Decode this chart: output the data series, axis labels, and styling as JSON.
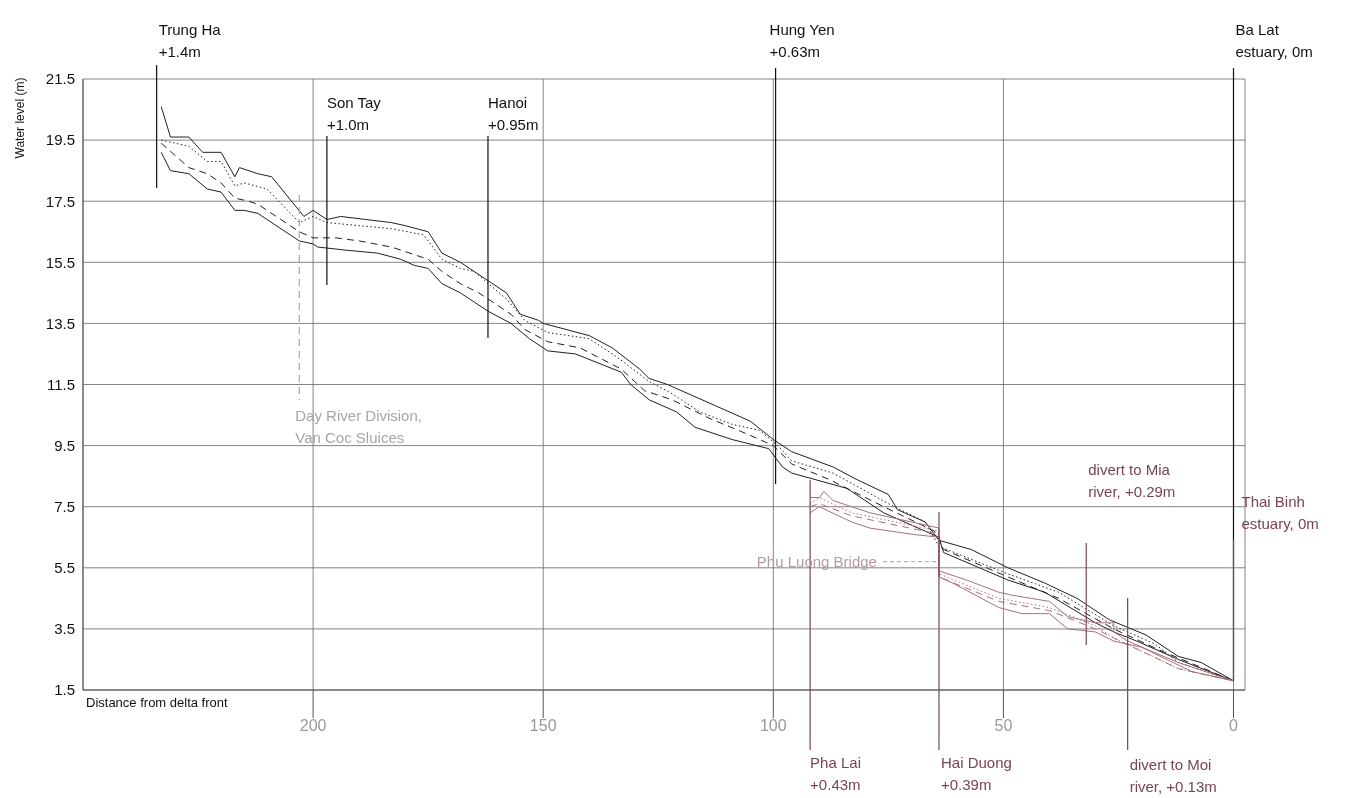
{
  "chart_data": {
    "type": "line",
    "xlabel": "Distance from delta front",
    "ylabel": "Water level (m)",
    "xlim": [
      250,
      -2.5
    ],
    "xticks": [
      200,
      150,
      100,
      50,
      0
    ],
    "ylim": [
      1.5,
      21.5
    ],
    "yticks": [
      1.5,
      3.5,
      5.5,
      7.5,
      9.5,
      11.5,
      13.5,
      15.5,
      17.5,
      19.5,
      21.5
    ],
    "grid": true,
    "series": [
      {
        "color": "#222222",
        "line_style": "solid",
        "x": [
          233,
          231,
          227,
          224,
          220,
          217,
          216,
          212,
          209,
          202,
          200,
          197,
          194,
          183,
          180,
          175,
          172,
          168,
          158,
          155,
          151,
          150,
          140,
          135,
          129,
          127,
          123,
          117,
          105,
          100,
          96,
          87,
          82,
          75,
          73,
          67,
          64,
          57,
          49,
          41,
          34,
          27,
          19,
          12,
          7,
          0
        ],
        "values": [
          20.6,
          19.6,
          19.6,
          19.1,
          19.1,
          18.3,
          18.6,
          18.4,
          18.3,
          17.0,
          17.2,
          16.9,
          17.0,
          16.8,
          16.7,
          16.5,
          15.8,
          15.5,
          14.5,
          13.8,
          13.6,
          13.5,
          13.1,
          12.7,
          12.0,
          11.7,
          11.5,
          11.1,
          10.3,
          9.7,
          9.3,
          8.8,
          8.4,
          7.9,
          7.4,
          7.0,
          6.4,
          6.1,
          5.5,
          5.0,
          4.5,
          3.8,
          3.3,
          2.6,
          2.4,
          1.8
        ]
      },
      {
        "color": "#222222",
        "line_style": "dotted",
        "x": [
          233,
          230,
          227,
          223,
          220,
          217,
          215,
          210,
          203,
          200,
          197,
          190,
          183,
          176,
          172,
          168,
          165,
          158,
          154,
          149,
          140,
          134,
          127,
          122,
          116,
          109,
          103,
          99,
          96,
          87,
          75,
          67,
          64,
          49,
          38,
          26,
          17,
          12,
          0
        ],
        "values": [
          19.5,
          19.4,
          19.3,
          18.8,
          18.8,
          18.0,
          18.1,
          17.9,
          16.8,
          17.0,
          16.8,
          16.7,
          16.6,
          16.4,
          15.6,
          15.3,
          15.2,
          14.3,
          13.6,
          13.2,
          13.0,
          12.4,
          11.6,
          11.2,
          10.6,
          10.2,
          10.0,
          9.5,
          9.0,
          8.6,
          7.6,
          7.0,
          6.2,
          5.3,
          4.7,
          3.6,
          3.0,
          2.4,
          1.8
        ]
      },
      {
        "color": "#222222",
        "line_style": "dashed",
        "x": [
          233,
          230,
          227,
          223,
          220,
          217,
          214,
          212,
          203,
          200,
          195,
          190,
          183,
          175,
          172,
          168,
          164,
          157,
          154,
          149,
          142,
          133,
          128,
          122,
          114,
          106,
          100,
          96,
          88,
          76,
          65,
          63,
          49,
          38,
          26,
          16,
          0
        ],
        "values": [
          19.4,
          19.0,
          18.6,
          18.4,
          18.1,
          17.6,
          17.5,
          17.4,
          16.5,
          16.3,
          16.3,
          16.2,
          16.0,
          15.6,
          15.2,
          14.8,
          14.5,
          13.8,
          13.3,
          12.9,
          12.7,
          12.0,
          11.3,
          11.0,
          10.4,
          9.9,
          9.5,
          8.9,
          8.4,
          7.5,
          6.7,
          6.1,
          5.2,
          4.5,
          3.5,
          2.8,
          1.8
        ]
      },
      {
        "color": "#222222",
        "line_style": "solid",
        "x": [
          233,
          231,
          227,
          223,
          220,
          217,
          215,
          212,
          203,
          200,
          199,
          193,
          186,
          181,
          178,
          175,
          172,
          168,
          162,
          157,
          153,
          149,
          143,
          133,
          131,
          127,
          121,
          117,
          109,
          101,
          98,
          96,
          84,
          76,
          64,
          63,
          49,
          41,
          30,
          26,
          21,
          12,
          0
        ],
        "values": [
          19.1,
          18.5,
          18.4,
          17.9,
          17.8,
          17.2,
          17.2,
          17.1,
          16.2,
          16.1,
          16.0,
          15.9,
          15.8,
          15.6,
          15.4,
          15.3,
          14.8,
          14.5,
          13.9,
          13.5,
          13.0,
          12.6,
          12.5,
          11.9,
          11.5,
          11.0,
          10.6,
          10.1,
          9.7,
          9.4,
          8.8,
          8.6,
          8.1,
          7.3,
          6.5,
          6.0,
          5.1,
          4.7,
          3.7,
          3.4,
          3.1,
          2.5,
          1.8
        ]
      },
      {
        "color": "#a8707a",
        "line_style": "solid",
        "x": [
          92,
          90,
          89,
          87,
          83,
          79,
          67,
          64,
          64,
          58,
          51,
          48,
          40,
          36,
          30,
          26,
          26,
          23,
          12,
          0
        ],
        "values": [
          7.8,
          7.8,
          8.0,
          7.7,
          7.5,
          7.3,
          6.9,
          6.8,
          5.4,
          5.1,
          4.7,
          4.6,
          4.4,
          3.9,
          3.7,
          3.7,
          3.4,
          3.1,
          2.4,
          1.8
        ]
      },
      {
        "color": "#a8707a",
        "line_style": "dotted",
        "x": [
          92,
          90,
          83,
          64,
          64,
          51,
          40,
          30,
          26,
          12,
          0
        ],
        "values": [
          7.6,
          7.8,
          7.3,
          6.7,
          5.3,
          4.5,
          4.2,
          3.6,
          3.2,
          2.2,
          1.8
        ]
      },
      {
        "color": "#a8707a",
        "line_style": "dashed",
        "x": [
          92,
          90,
          83,
          64,
          64,
          51,
          40,
          30,
          26,
          12,
          0
        ],
        "values": [
          7.5,
          7.6,
          7.2,
          6.6,
          5.2,
          4.4,
          4.1,
          3.5,
          3.2,
          2.2,
          1.8
        ]
      },
      {
        "color": "#a8707a",
        "line_style": "solid",
        "x": [
          92,
          90,
          83,
          79,
          70,
          64,
          64,
          61,
          51,
          46,
          40,
          36,
          30,
          26,
          20,
          9,
          0
        ],
        "values": [
          7.3,
          7.5,
          7.0,
          6.8,
          6.6,
          6.5,
          5.2,
          5.0,
          4.2,
          4.0,
          4.0,
          3.5,
          3.4,
          3.1,
          2.9,
          2.1,
          1.8
        ]
      }
    ],
    "ref_lines": [
      {
        "axis": "x",
        "value": 234,
        "label": "Trung Ha\n+1.4m",
        "color": "#111111"
      },
      {
        "axis": "x",
        "value": 197,
        "label": "Son Tay\n+1.0m",
        "color": "#111111"
      },
      {
        "axis": "x",
        "value": 162,
        "label": "Hanoi\n+0.95m",
        "color": "#111111"
      },
      {
        "axis": "x",
        "value": 99.5,
        "label": "Hung Yen\n+0.63m",
        "color": "#111111"
      },
      {
        "axis": "x",
        "value": 0,
        "label": "Ba Lat\nestuary, 0m",
        "color": "#111111"
      },
      {
        "axis": "x",
        "value": 92,
        "label": "Pha Lai\n+0.43m",
        "color": "#7a4450"
      },
      {
        "axis": "x",
        "value": 64,
        "label": "Hai Duong\n+0.39m",
        "color": "#7a4450"
      },
      {
        "axis": "x",
        "value": 32,
        "label": "divert to Mia\nriver, +0.29m",
        "color": "#7a4450"
      },
      {
        "axis": "x",
        "value": 23,
        "label": "divert to Moi\nriver, +0.13m",
        "color": "#7a4450"
      },
      {
        "axis": "x",
        "value": 0,
        "label": "Thai Binh\nestuary, 0m",
        "color": "#7a4450"
      },
      {
        "axis": "x",
        "value": 203,
        "label": "Day River Division,\nVan Coc Sluices",
        "color": "#a6a6a6",
        "line_style": "dashed"
      }
    ],
    "annotations": [
      {
        "text": "Phu Luong Bridge",
        "x": 64,
        "y": 5.7
      }
    ]
  }
}
